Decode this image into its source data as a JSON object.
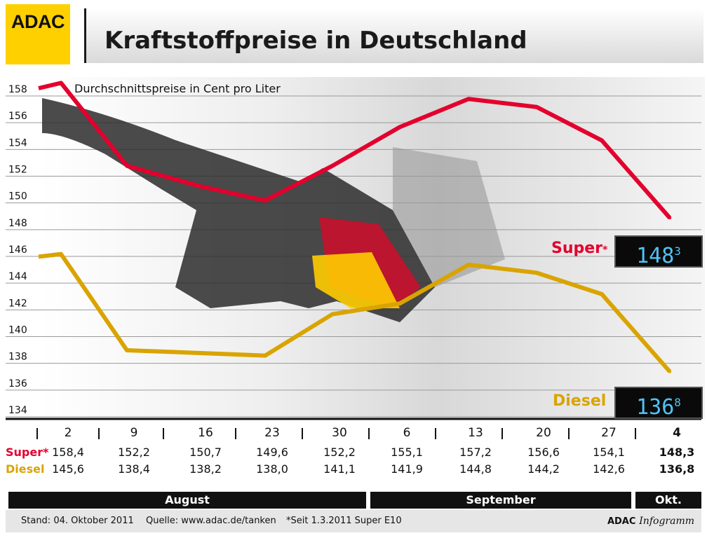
{
  "header": {
    "logo": "ADAC",
    "title": "Kraftstoffpreise in Deutschland"
  },
  "chart_data": {
    "type": "line",
    "subtitle": "Durchschnittspreise in Cent pro Liter",
    "ylim": [
      134,
      158
    ],
    "yticks": [
      158,
      156,
      154,
      152,
      150,
      148,
      146,
      144,
      142,
      140,
      138,
      136,
      134
    ],
    "categories": [
      "2",
      "9",
      "16",
      "23",
      "30",
      "6",
      "13",
      "20",
      "27",
      "4"
    ],
    "series": [
      {
        "name": "Super",
        "label": "Super*",
        "color": "#e3002d",
        "display": "148",
        "display_sup": "3",
        "values": [
          158.4,
          152.2,
          150.7,
          149.6,
          152.2,
          155.1,
          157.2,
          156.6,
          154.1,
          148.3
        ],
        "value_labels": [
          "158,4",
          "152,2",
          "150,7",
          "149,6",
          "152,2",
          "155,1",
          "157,2",
          "156,6",
          "154,1",
          "148,3"
        ]
      },
      {
        "name": "Diesel",
        "label": "Diesel",
        "color": "#d9a400",
        "display": "136",
        "display_sup": "8",
        "values": [
          145.6,
          138.4,
          138.2,
          138.0,
          141.1,
          141.9,
          144.8,
          144.2,
          142.6,
          136.8
        ],
        "value_labels": [
          "145,6",
          "138,4",
          "138,2",
          "138,0",
          "141,1",
          "141,9",
          "144,8",
          "144,2",
          "142,6",
          "136,8"
        ]
      }
    ],
    "months": [
      "August",
      "September",
      "Okt."
    ],
    "grid": true
  },
  "footer": {
    "stand": "Stand: 04. Oktober 2011",
    "quelle": "Quelle: www.adac.de/tanken",
    "note": "*Seit 1.3.2011 Super E10",
    "brand_bold": "ADAC",
    "brand_italic": "Infogramm"
  }
}
